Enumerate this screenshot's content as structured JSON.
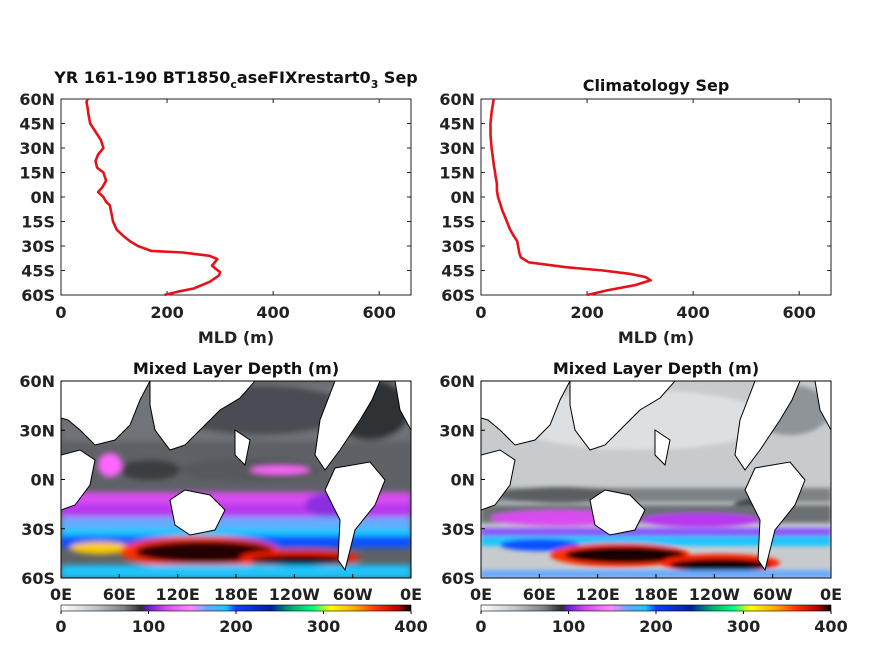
{
  "chart_data": [
    {
      "type": "line",
      "title": "YR 161-190 BT1850",
      "title_sub": "c",
      "title_mid": "aseFIXrestart0",
      "title_sub2": "3",
      "title_tail": " Sep",
      "xlabel": "MLD (m)",
      "ylabel": "",
      "xlim": [
        0,
        660
      ],
      "ylim": [
        -60,
        60
      ],
      "xticks": [
        "0",
        "200",
        "400",
        "600"
      ],
      "yticks": [
        "60N",
        "45N",
        "30N",
        "15N",
        "0N",
        "15S",
        "30S",
        "45S",
        "60S"
      ],
      "series": [
        {
          "color": "#e6121b",
          "x": [
            195,
            220,
            250,
            280,
            298,
            300,
            292,
            285,
            290,
            295,
            280,
            230,
            170,
            145,
            130,
            118,
            105,
            98,
            95,
            92,
            85,
            80,
            70,
            78,
            85,
            80,
            68,
            65,
            70,
            80,
            75,
            65,
            55,
            52,
            50,
            48,
            50
          ],
          "y": [
            -60,
            -58,
            -56,
            -52,
            -48,
            -46,
            -44,
            -42,
            -40,
            -38,
            -36,
            -34,
            -33,
            -30,
            -27,
            -24,
            -20,
            -15,
            -10,
            -5,
            -3,
            0,
            3,
            6,
            10,
            15,
            18,
            22,
            26,
            30,
            35,
            40,
            45,
            50,
            55,
            58,
            60
          ]
        }
      ]
    },
    {
      "type": "line",
      "title": "Climatology Sep",
      "xlabel": "MLD (m)",
      "ylabel": "",
      "xlim": [
        0,
        660
      ],
      "ylim": [
        -60,
        60
      ],
      "xticks": [
        "0",
        "200",
        "400",
        "600"
      ],
      "yticks": [
        "60N",
        "45N",
        "30N",
        "15N",
        "0N",
        "15S",
        "30S",
        "45S",
        "60S"
      ],
      "series": [
        {
          "color": "#e6121b",
          "x": [
            200,
            240,
            290,
            320,
            310,
            280,
            230,
            160,
            90,
            75,
            72,
            70,
            68,
            62,
            55,
            50,
            45,
            40,
            36,
            32,
            30,
            30,
            28,
            26,
            24,
            22,
            20,
            18,
            18,
            20,
            22,
            24
          ],
          "y": [
            -60,
            -57,
            -54,
            -51,
            -49,
            -47,
            -45,
            -43,
            -40,
            -37,
            -34,
            -30,
            -27,
            -24,
            -20,
            -16,
            -12,
            -8,
            -4,
            0,
            4,
            8,
            12,
            16,
            20,
            25,
            30,
            38,
            45,
            52,
            56,
            60
          ]
        }
      ]
    },
    {
      "type": "heatmap",
      "title": "Mixed Layer Depth (m)",
      "xticks": [
        "0E",
        "60E",
        "120E",
        "180E",
        "120W",
        "60W",
        "0E"
      ],
      "yticks": [
        "60N",
        "30N",
        "0N",
        "30S",
        "60S"
      ],
      "colorbar": {
        "min": 0,
        "max": 400,
        "ticks": [
          "0",
          "100",
          "200",
          "300",
          "400"
        ]
      },
      "colormap": [
        "#ffffff",
        "#c0c6c9",
        "#7d8286",
        "#3a3d40",
        "#101010",
        "#6b1fd0",
        "#d84cf0",
        "#ff88ff",
        "#66aaff",
        "#1bc6ff",
        "#1050ff",
        "#0020a0",
        "#00b06c",
        "#00ff88",
        "#ffff00",
        "#ffaa00",
        "#ff3300",
        "#b80000",
        "#000000"
      ]
    },
    {
      "type": "heatmap",
      "title": "Mixed Layer Depth (m)",
      "xticks": [
        "0E",
        "60E",
        "120E",
        "180E",
        "120W",
        "60W",
        "0E"
      ],
      "yticks": [
        "60N",
        "30N",
        "0N",
        "30S",
        "60S"
      ],
      "colorbar": {
        "min": 0,
        "max": 400,
        "ticks": [
          "0",
          "100",
          "200",
          "300",
          "400"
        ]
      }
    }
  ]
}
